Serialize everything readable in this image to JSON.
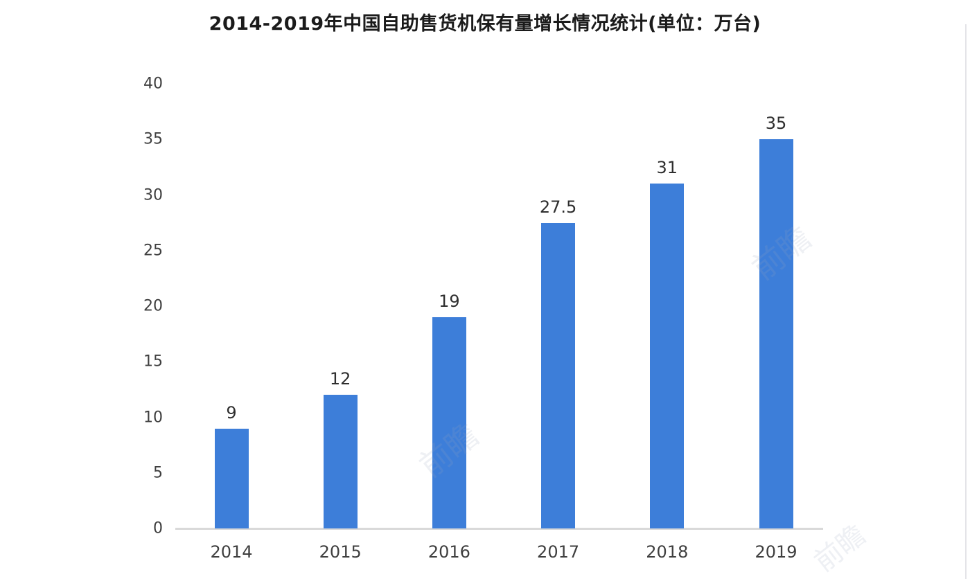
{
  "chart_data": {
    "type": "bar",
    "title": "2014-2019年中国自助售货机保有量增长情况统计(单位：万台)",
    "categories": [
      "2014",
      "2015",
      "2016",
      "2017",
      "2018",
      "2019"
    ],
    "values": [
      9,
      12,
      19,
      27.5,
      31,
      35
    ],
    "value_labels": [
      "9",
      "12",
      "19",
      "27.5",
      "31",
      "35"
    ],
    "yticks": [
      0,
      5,
      10,
      15,
      20,
      25,
      30,
      35,
      40
    ],
    "ylim": [
      0,
      40
    ],
    "xlabel": "",
    "ylabel": "",
    "grid": "off",
    "legend": "none",
    "bar_color": "#3d7ed9"
  },
  "colors": {
    "title": "#1b1b1b",
    "tick_labels": "#3f3f3f",
    "value_labels": "#2e2e2e",
    "axis_line": "#d9d9d9",
    "background": "#ffffff"
  },
  "watermark": {
    "text": "前瞻"
  }
}
